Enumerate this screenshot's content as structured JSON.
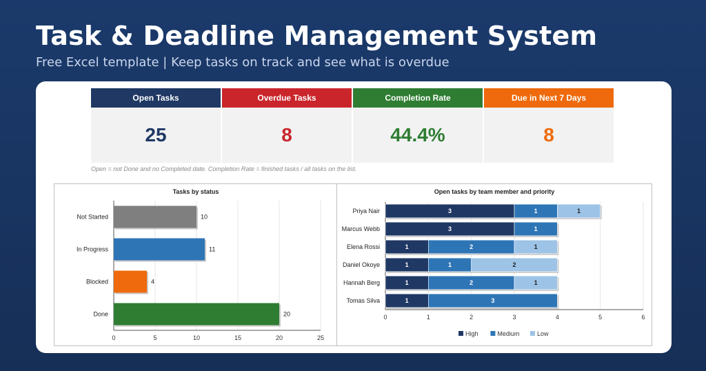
{
  "header": {
    "title": "Task & Deadline Management System",
    "subtitle": "Free Excel template  |  Keep tasks on track and see what is overdue"
  },
  "kpis": [
    {
      "label": "Open Tasks",
      "value": "25",
      "color": "#1f3864"
    },
    {
      "label": "Overdue Tasks",
      "value": "8",
      "color": "#c9252b"
    },
    {
      "label": "Completion Rate",
      "value": "44.4%",
      "color": "#2e7d32"
    },
    {
      "label": "Due in Next 7 Days",
      "value": "8",
      "color": "#ee6a0c"
    }
  ],
  "note": "Open = not Done and no Completed date. Completion Rate = finished tasks / all tasks on the list.",
  "chart_data": [
    {
      "type": "bar",
      "orientation": "horizontal",
      "title": "Tasks by status",
      "categories": [
        "Not Started",
        "In Progress",
        "Blocked",
        "Done"
      ],
      "values": [
        10,
        11,
        4,
        20
      ],
      "colors": [
        "#7f7f7f",
        "#2e75b6",
        "#ee6a0c",
        "#2e7d32"
      ],
      "xlim": [
        0,
        25
      ],
      "xticks": [
        0,
        5,
        10,
        15,
        20,
        25
      ],
      "grid": true
    },
    {
      "type": "bar",
      "orientation": "horizontal",
      "stacked": true,
      "title": "Open tasks by team member and priority",
      "categories": [
        "Priya Nair",
        "Marcus Webb",
        "Elena Rossi",
        "Daniel Okoye",
        "Hannah Berg",
        "Tomas Silva"
      ],
      "series": [
        {
          "name": "High",
          "values": [
            3,
            3,
            1,
            1,
            1,
            1
          ],
          "color": "#1f3864"
        },
        {
          "name": "Medium",
          "values": [
            1,
            1,
            2,
            1,
            2,
            3
          ],
          "color": "#2e75b6"
        },
        {
          "name": "Low",
          "values": [
            1,
            0,
            1,
            2,
            1,
            0
          ],
          "color": "#9dc3e6"
        }
      ],
      "xlim": [
        0,
        6
      ],
      "xticks": [
        0,
        1,
        2,
        3,
        4,
        5,
        6
      ],
      "legend": "bottom",
      "grid": true
    }
  ]
}
